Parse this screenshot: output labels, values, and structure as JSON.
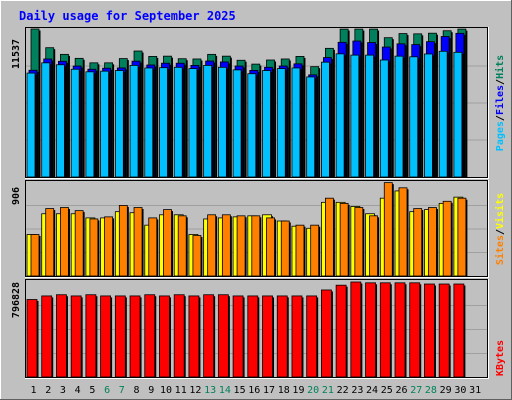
{
  "title": "Daily usage for September 2025",
  "colors": {
    "background": "#c0c0c0",
    "plot_background": "#c0c0c0",
    "title": "#0000ff",
    "hits": "#00805c",
    "files": "#0000ff",
    "pages": "#00c0ff",
    "visits": "#ffff00",
    "sites": "#ff8000",
    "kbytes": "#ff0000",
    "weekend_label": "#00805c",
    "weekday_label": "#000000"
  },
  "panels": {
    "top": {
      "max_label": "11537",
      "legend": [
        {
          "text": "Pages",
          "color": "#00c0ff"
        },
        {
          "text": "/",
          "color": "#000000"
        },
        {
          "text": "Files",
          "color": "#0000ff"
        },
        {
          "text": "/",
          "color": "#000000"
        },
        {
          "text": "Hits",
          "color": "#00805c"
        }
      ]
    },
    "middle": {
      "max_label": "906",
      "legend": [
        {
          "text": "Sites",
          "color": "#ff8000"
        },
        {
          "text": "/",
          "color": "#000000"
        },
        {
          "text": "Visits",
          "color": "#ffff00"
        }
      ]
    },
    "bottom": {
      "max_label": "796828",
      "legend": [
        {
          "text": "KBytes",
          "color": "#ff0000"
        }
      ]
    }
  },
  "chart_data": [
    {
      "type": "bar",
      "categories": [
        "1",
        "2",
        "3",
        "4",
        "5",
        "6",
        "7",
        "8",
        "9",
        "10",
        "11",
        "12",
        "13",
        "14",
        "15",
        "16",
        "17",
        "18",
        "19",
        "20",
        "21",
        "22",
        "23",
        "24",
        "25",
        "26",
        "27",
        "28",
        "29",
        "30",
        "31"
      ],
      "weekend_days": [
        "6",
        "7",
        "13",
        "14",
        "20",
        "21",
        "27",
        "28"
      ],
      "ylim": [
        0,
        11537
      ],
      "series": [
        {
          "name": "Hits",
          "values": [
            11537,
            10080,
            9560,
            9250,
            8900,
            8900,
            9230,
            9820,
            9400,
            9420,
            9220,
            9200,
            9560,
            9420,
            9100,
            8800,
            9120,
            9200,
            9400,
            8600,
            10030,
            11530,
            11530,
            11530,
            10860,
            11180,
            11160,
            11210,
            11400,
            11530,
            0
          ]
        },
        {
          "name": "Files",
          "values": [
            8320,
            9200,
            9020,
            8650,
            8400,
            8480,
            8500,
            9030,
            8730,
            8870,
            8870,
            8700,
            9040,
            8970,
            8650,
            8310,
            8550,
            8650,
            8820,
            7960,
            9310,
            10500,
            10600,
            10480,
            10130,
            10380,
            10320,
            10550,
            10950,
            11200,
            0
          ]
        },
        {
          "name": "Pages",
          "values": [
            8100,
            8900,
            8750,
            8400,
            8200,
            8250,
            8300,
            8700,
            8500,
            8520,
            8550,
            8450,
            8700,
            8550,
            8350,
            8050,
            8300,
            8450,
            8500,
            7800,
            8950,
            9600,
            9500,
            9500,
            9120,
            9420,
            9370,
            9590,
            9800,
            9720,
            0
          ]
        }
      ]
    },
    {
      "type": "bar",
      "categories": [
        "1",
        "2",
        "3",
        "4",
        "5",
        "6",
        "7",
        "8",
        "9",
        "10",
        "11",
        "12",
        "13",
        "14",
        "15",
        "16",
        "17",
        "18",
        "19",
        "20",
        "21",
        "22",
        "23",
        "24",
        "25",
        "26",
        "27",
        "28",
        "29",
        "30",
        "31"
      ],
      "ylim": [
        0,
        906
      ],
      "series": [
        {
          "name": "Visits",
          "values": [
            400,
            600,
            600,
            600,
            560,
            560,
            620,
            610,
            490,
            590,
            590,
            400,
            550,
            560,
            570,
            580,
            590,
            530,
            480,
            460,
            710,
            710,
            670,
            600,
            750,
            820,
            620,
            640,
            700,
            760,
            0
          ]
        },
        {
          "name": "Sites",
          "values": [
            400,
            650,
            660,
            630,
            550,
            570,
            680,
            660,
            560,
            640,
            580,
            390,
            590,
            590,
            580,
            580,
            560,
            530,
            490,
            490,
            750,
            700,
            660,
            580,
            900,
            850,
            650,
            660,
            720,
            750,
            0
          ]
        }
      ]
    },
    {
      "type": "bar",
      "categories": [
        "1",
        "2",
        "3",
        "4",
        "5",
        "6",
        "7",
        "8",
        "9",
        "10",
        "11",
        "12",
        "13",
        "14",
        "15",
        "16",
        "17",
        "18",
        "19",
        "20",
        "21",
        "22",
        "23",
        "24",
        "25",
        "26",
        "27",
        "28",
        "29",
        "30",
        "31"
      ],
      "ylim": [
        0,
        796828
      ],
      "series": [
        {
          "name": "KBytes",
          "values": [
            650000,
            680000,
            690000,
            680000,
            690000,
            680000,
            680000,
            680000,
            690000,
            680000,
            690000,
            680000,
            690000,
            690000,
            680000,
            680000,
            680000,
            680000,
            680000,
            680000,
            730000,
            770000,
            796828,
            790000,
            790000,
            790000,
            790000,
            780000,
            780000,
            780000,
            0
          ]
        }
      ]
    }
  ]
}
